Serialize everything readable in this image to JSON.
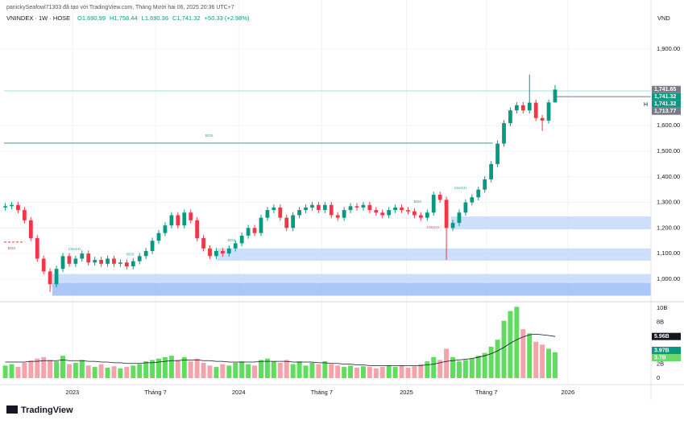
{
  "header": {
    "credit": "panickySeafowl71303 đã tạo với TradingView.com, Tháng Mười hai 06, 2025 20:36 UTC+7",
    "symbol": "VNINDEX · 1W · HOSE",
    "ohlc_labels": [
      "O1,690.99",
      "H1,758.44",
      "L1,690.36",
      "C1,741.32"
    ],
    "change": "+50.33 (+2.98%)",
    "currency": "VND",
    "logo": "TradingView"
  },
  "chart_data": {
    "type": "candlestick",
    "up_color": "#089981",
    "down_color": "#f23645",
    "volume_up_color": "#5fdd5f",
    "volume_down_color": "#f5a3ab",
    "volume_ma_color": "#131722",
    "grid": true,
    "x": [
      -21,
      -19,
      -17,
      -15,
      -13,
      -11,
      -9,
      -7,
      -5,
      -3,
      -1,
      1,
      3,
      5,
      7,
      9,
      11,
      13,
      15,
      17,
      19,
      21,
      23,
      25,
      27,
      29,
      31,
      33,
      35,
      37,
      39,
      41,
      43,
      45,
      47,
      49,
      51,
      53,
      55,
      57,
      59,
      61,
      63,
      65,
      67,
      69,
      71,
      73,
      75,
      77,
      79,
      81,
      83,
      85,
      87,
      89,
      91,
      93,
      95,
      97,
      99,
      101,
      103,
      105,
      107,
      109,
      111,
      113,
      115,
      117,
      119,
      121,
      123,
      125,
      127,
      129,
      131,
      133,
      135,
      137,
      139,
      141,
      143,
      145,
      147,
      149,
      151
    ],
    "open": [
      1280,
      1285,
      1290,
      1270,
      1230,
      1160,
      1080,
      1030,
      980,
      1040,
      1090,
      1060,
      1080,
      1100,
      1065,
      1075,
      1060,
      1080,
      1060,
      1065,
      1050,
      1070,
      1090,
      1110,
      1150,
      1180,
      1210,
      1250,
      1210,
      1260,
      1230,
      1160,
      1120,
      1090,
      1110,
      1100,
      1120,
      1140,
      1170,
      1200,
      1180,
      1240,
      1270,
      1280,
      1240,
      1200,
      1250,
      1270,
      1280,
      1290,
      1270,
      1290,
      1250,
      1240,
      1270,
      1285,
      1280,
      1290,
      1270,
      1260,
      1250,
      1270,
      1280,
      1270,
      1265,
      1250,
      1240,
      1260,
      1330,
      1310,
      1200,
      1220,
      1260,
      1300,
      1320,
      1350,
      1390,
      1450,
      1530,
      1610,
      1660,
      1680,
      1660,
      1690,
      1630,
      1620,
      1690.99
    ],
    "high": [
      1297,
      1302,
      1302,
      1282,
      1242,
      1172,
      1092,
      1042,
      1052,
      1102,
      1102,
      1092,
      1112,
      1112,
      1087,
      1087,
      1092,
      1092,
      1077,
      1077,
      1082,
      1102,
      1122,
      1162,
      1192,
      1222,
      1262,
      1262,
      1272,
      1272,
      1242,
      1172,
      1132,
      1122,
      1122,
      1132,
      1152,
      1182,
      1212,
      1212,
      1252,
      1282,
      1292,
      1292,
      1252,
      1262,
      1282,
      1292,
      1302,
      1302,
      1302,
      1302,
      1262,
      1282,
      1297,
      1297,
      1302,
      1302,
      1282,
      1272,
      1282,
      1292,
      1292,
      1282,
      1277,
      1262,
      1272,
      1342,
      1342,
      1322,
      1232,
      1272,
      1312,
      1332,
      1362,
      1402,
      1462,
      1542,
      1622,
      1672,
      1692,
      1692,
      1800,
      1702,
      1642,
      1702,
      1758.44
    ],
    "low": [
      1268,
      1273,
      1258,
      1218,
      1148,
      1068,
      1018,
      950,
      968,
      1028,
      1048,
      1048,
      1068,
      1053,
      1053,
      1048,
      1048,
      1048,
      1048,
      1038,
      1038,
      1058,
      1078,
      1098,
      1138,
      1168,
      1198,
      1198,
      1198,
      1218,
      1148,
      1108,
      1078,
      1078,
      1088,
      1088,
      1108,
      1128,
      1158,
      1168,
      1168,
      1228,
      1258,
      1228,
      1188,
      1188,
      1238,
      1258,
      1268,
      1258,
      1258,
      1238,
      1228,
      1228,
      1258,
      1268,
      1268,
      1258,
      1248,
      1238,
      1238,
      1258,
      1258,
      1253,
      1238,
      1228,
      1228,
      1248,
      1298,
      1075,
      1188,
      1208,
      1248,
      1288,
      1308,
      1338,
      1378,
      1438,
      1518,
      1598,
      1648,
      1648,
      1648,
      1618,
      1580,
      1608,
      1690.36
    ],
    "close": [
      1285,
      1290,
      1270,
      1230,
      1160,
      1080,
      1030,
      980,
      1040,
      1090,
      1060,
      1080,
      1100,
      1065,
      1075,
      1060,
      1080,
      1060,
      1065,
      1050,
      1070,
      1090,
      1110,
      1150,
      1180,
      1210,
      1250,
      1210,
      1260,
      1230,
      1160,
      1120,
      1090,
      1110,
      1100,
      1120,
      1140,
      1170,
      1200,
      1180,
      1240,
      1270,
      1280,
      1240,
      1200,
      1250,
      1270,
      1280,
      1290,
      1270,
      1290,
      1250,
      1240,
      1270,
      1285,
      1280,
      1290,
      1270,
      1260,
      1250,
      1270,
      1280,
      1270,
      1265,
      1250,
      1240,
      1260,
      1330,
      1310,
      1200,
      1220,
      1260,
      1300,
      1320,
      1350,
      1390,
      1450,
      1530,
      1610,
      1660,
      1680,
      1660,
      1690,
      1630,
      1620,
      1690.99,
      1741.32
    ],
    "volume": [
      1.8,
      2.0,
      1.6,
      2.2,
      2.5,
      2.8,
      3.0,
      2.6,
      2.4,
      3.2,
      2.0,
      2.2,
      2.6,
      1.8,
      1.6,
      2.0,
      1.5,
      1.7,
      1.4,
      1.6,
      1.8,
      2.0,
      2.4,
      2.6,
      2.8,
      3.0,
      3.2,
      2.6,
      3.0,
      2.4,
      2.8,
      2.2,
      1.8,
      1.6,
      2.0,
      1.8,
      2.2,
      2.4,
      2.0,
      1.8,
      2.6,
      2.8,
      2.4,
      2.2,
      2.6,
      2.0,
      2.4,
      1.8,
      2.2,
      2.0,
      2.4,
      2.0,
      1.8,
      1.6,
      1.8,
      1.5,
      1.7,
      1.6,
      1.4,
      1.6,
      1.8,
      1.6,
      1.8,
      1.5,
      1.7,
      2.0,
      2.4,
      3.0,
      2.6,
      4.2,
      3.0,
      2.4,
      2.6,
      2.8,
      3.2,
      3.6,
      4.5,
      5.5,
      8.2,
      9.6,
      10.2,
      7.0,
      6.4,
      5.2,
      4.8,
      4.2,
      3.7
    ],
    "volume_ma": [
      2.3,
      2.3,
      2.3,
      2.3,
      2.4,
      2.4,
      2.5,
      2.5,
      2.5,
      2.6,
      2.5,
      2.5,
      2.5,
      2.4,
      2.4,
      2.3,
      2.3,
      2.2,
      2.2,
      2.1,
      2.1,
      2.1,
      2.2,
      2.2,
      2.3,
      2.4,
      2.5,
      2.5,
      2.6,
      2.6,
      2.6,
      2.5,
      2.5,
      2.4,
      2.4,
      2.3,
      2.3,
      2.3,
      2.3,
      2.3,
      2.4,
      2.4,
      2.4,
      2.4,
      2.4,
      2.3,
      2.3,
      2.3,
      2.3,
      2.2,
      2.2,
      2.1,
      2.1,
      2.0,
      2.0,
      1.9,
      1.9,
      1.8,
      1.8,
      1.8,
      1.8,
      1.8,
      1.8,
      1.8,
      1.8,
      1.8,
      1.9,
      2.0,
      2.2,
      2.4,
      2.5,
      2.6,
      2.7,
      2.8,
      3.0,
      3.2,
      3.5,
      3.9,
      4.4,
      5.0,
      5.5,
      5.9,
      6.2,
      6.3,
      6.2,
      6.1,
      5.96
    ],
    "xlim": [
      -21.4,
      181
    ],
    "xticks": [
      {
        "value": 0,
        "label": "2023"
      },
      {
        "value": 26,
        "label": "Tháng 7"
      },
      {
        "value": 52,
        "label": "2024"
      },
      {
        "value": 78,
        "label": "Tháng 7"
      },
      {
        "value": 104.5,
        "label": "2025"
      },
      {
        "value": 129.5,
        "label": "Tháng 7"
      },
      {
        "value": 155,
        "label": "2026"
      }
    ],
    "ylim": [
      921,
      2035
    ],
    "yticks": [
      {
        "value": 1000,
        "label": "1,000.00"
      },
      {
        "value": 1100,
        "label": "1,100.00"
      },
      {
        "value": 1200,
        "label": "1,200.00"
      },
      {
        "value": 1300,
        "label": "1,300.00"
      },
      {
        "value": 1400,
        "label": "1,400.00"
      },
      {
        "value": 1500,
        "label": "1,500.00"
      },
      {
        "value": 1600,
        "label": "1,600.00"
      },
      {
        "value": 1900,
        "label": "1,900.00"
      }
    ],
    "y2lim": [
      0,
      10.7
    ],
    "y2ticks": [
      0,
      {
        "value": 2,
        "label": "2B"
      },
      {
        "value": 8,
        "label": "8B"
      },
      {
        "value": 10,
        "label": "10B"
      }
    ],
    "price_labels": [
      {
        "value": 1741.65,
        "label": "1,741.65",
        "color": "#787b86"
      },
      {
        "value": 1741.32,
        "label": "1,741.32",
        "color": "#089981"
      },
      {
        "value": 1741.32,
        "label": "1,741.32",
        "color": "#089981"
      },
      {
        "value": 1713.77,
        "label": "1,713.77",
        "color": "#787b86"
      }
    ],
    "volume_labels": [
      {
        "value": 5.96,
        "label": "5.96B",
        "color": "#131722"
      },
      {
        "value": 3.97,
        "label": "3.97B",
        "color": "#089981"
      },
      {
        "value": 3.7,
        "label": "3.7B",
        "color": "#6bd96b"
      }
    ],
    "high_marker": "H",
    "zones": [
      {
        "x": [
          -6.3,
          181
        ],
        "y": [
          985,
          1020
        ],
        "color": "#bbd6fb"
      },
      {
        "x": [
          -6.3,
          181
        ],
        "y": [
          935,
          985
        ],
        "color": "#8fb3f7"
      },
      {
        "x": [
          45.3,
          181
        ],
        "y": [
          1072,
          1120
        ],
        "color": "#bbd6fb"
      },
      {
        "x": [
          118.4,
          181
        ],
        "y": [
          1195,
          1245
        ],
        "color": "#bbd6fb"
      }
    ],
    "levels": [
      {
        "value": 1532,
        "x": [
          -21.4,
          131.5
        ],
        "color": "#26a69a",
        "dash": false
      },
      {
        "value": 1145,
        "x": [
          -21.4,
          -15
        ],
        "color": "#f23645",
        "dash": true
      },
      {
        "value": 1736,
        "x": [
          -21.4,
          181
        ],
        "color": "#a8e0da",
        "dash": false
      },
      {
        "value": 1713.77,
        "x": [
          150.5,
          181
        ],
        "color": "#787b86",
        "dash": false
      }
    ],
    "annotations": [
      {
        "text": "BOS",
        "x": 41.6,
        "y": 1560,
        "color": "#26a69a"
      },
      {
        "text": "BOS",
        "x": -20.2,
        "y": 1120,
        "color": "#f23645"
      },
      {
        "text": "CHoCH",
        "x": -1.3,
        "y": 1116,
        "color": "#26a69a"
      },
      {
        "text": "BOS",
        "x": 16.9,
        "y": 1097,
        "color": "#26a69a"
      },
      {
        "text": "BOS",
        "x": 48.6,
        "y": 1151,
        "color": "#26a69a"
      },
      {
        "text": "BOS",
        "x": 106.8,
        "y": 1302,
        "color": "#26a69a"
      },
      {
        "text": "CHoCH",
        "x": 119.4,
        "y": 1356,
        "color": "#26a69a"
      },
      {
        "text": "CHoCH",
        "x": 110.8,
        "y": 1201,
        "color": "#f23645"
      }
    ]
  }
}
